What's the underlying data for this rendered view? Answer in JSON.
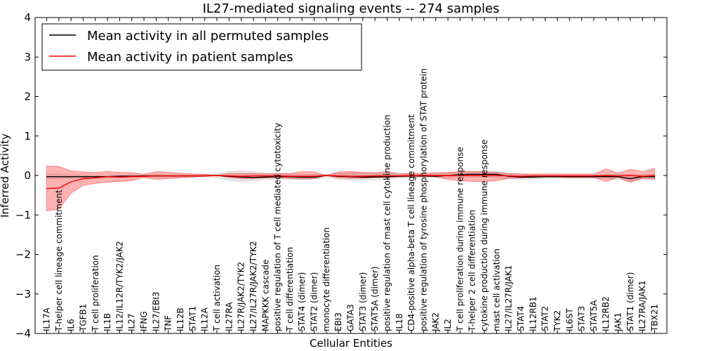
{
  "chart_data": {
    "type": "line",
    "title": "IL27-mediated signaling events -- 274 samples",
    "xlabel": "Cellular Entities",
    "ylabel": "Inferred Activity",
    "ylim": [
      -4,
      4
    ],
    "yticks": [
      "−4",
      "−3",
      "−2",
      "−1",
      "0",
      "1",
      "2",
      "3",
      "4"
    ],
    "ytick_values": [
      -4,
      -3,
      -2,
      -1,
      0,
      1,
      2,
      3,
      4
    ],
    "legend_position": "top-left",
    "categories": [
      "IL17A",
      "T-helper cell lineage commitment",
      "IL6",
      "TGFB1",
      "T cell proliferation",
      "IL1B",
      "IL12/IL12R/TYK2/JAK2",
      "IL27",
      "IFNG",
      "IL27/EBI3",
      "TNF",
      "IL12B",
      "STAT1",
      "IL12A",
      "T cell activation",
      "IL27RA",
      "IL27R/JAK2/TYK2",
      "IL27/IL27R/JAK2/TYK2",
      "MAPKKK cascade",
      "positive regulation of T cell mediated cytotoxicity",
      "T cell differentiation",
      "STAT4 (dimer)",
      "STAT2 (dimer)",
      "monocyte differentiation",
      "EBI3",
      "GATA3",
      "STAT3 (dimer)",
      "STAT5A (dimer)",
      "positive regulation of mast cell cytokine production",
      "IL18",
      "CD4-positive alpha-beta T cell lineage commitment",
      "positive regulation of tyrosine phosphorylation of STAT protein",
      "JAK2",
      "IL2",
      "T cell proliferation during immune response",
      "T-helper 2 cell differentiation",
      "cytokine production during immune response",
      "mast cell activation",
      "IL27/IL27R/JAK1",
      "STAT4",
      "IL12RB1",
      "STAT2",
      "TYK2",
      "IL6ST",
      "STAT3",
      "STAT5A",
      "IL12RB2",
      "JAK1",
      "STAT1 (dimer)",
      "IL27RA/JAK1",
      "TBX21"
    ],
    "series": [
      {
        "name": "Mean activity in all permuted samples",
        "color": "#000000",
        "values": [
          -0.03,
          -0.03,
          -0.03,
          -0.03,
          -0.03,
          -0.03,
          -0.02,
          -0.02,
          -0.01,
          -0.01,
          -0.01,
          -0.01,
          -0.01,
          -0.01,
          0.0,
          -0.02,
          -0.04,
          -0.05,
          -0.04,
          -0.03,
          -0.03,
          -0.04,
          -0.04,
          0.0,
          -0.02,
          -0.03,
          -0.04,
          -0.04,
          -0.03,
          -0.02,
          -0.01,
          -0.01,
          -0.02,
          0.0,
          0.02,
          0.03,
          0.03,
          0.03,
          -0.02,
          -0.04,
          -0.04,
          -0.03,
          -0.03,
          -0.03,
          -0.03,
          -0.03,
          -0.03,
          -0.03,
          -0.08,
          -0.03,
          -0.03
        ],
        "lower": [
          -0.08,
          -0.08,
          -0.07,
          -0.06,
          -0.06,
          -0.05,
          -0.05,
          -0.04,
          -0.04,
          -0.04,
          -0.04,
          -0.04,
          -0.04,
          -0.03,
          -0.05,
          -0.12,
          -0.15,
          -0.14,
          -0.1,
          -0.09,
          -0.09,
          -0.1,
          -0.09,
          -0.05,
          -0.09,
          -0.12,
          -0.12,
          -0.11,
          -0.08,
          -0.06,
          -0.05,
          -0.05,
          -0.06,
          -0.05,
          -0.05,
          -0.04,
          -0.04,
          -0.05,
          -0.09,
          -0.1,
          -0.09,
          -0.08,
          -0.07,
          -0.07,
          -0.07,
          -0.07,
          -0.08,
          -0.1,
          -0.15,
          -0.08,
          -0.08
        ],
        "upper": [
          0.03,
          0.03,
          0.02,
          0.01,
          0.0,
          0.0,
          0.01,
          0.01,
          0.02,
          0.02,
          0.02,
          0.02,
          0.02,
          0.02,
          0.05,
          0.1,
          0.12,
          0.1,
          0.06,
          0.05,
          0.04,
          0.03,
          0.03,
          0.03,
          0.06,
          0.07,
          0.06,
          0.05,
          0.05,
          0.03,
          0.04,
          0.04,
          0.04,
          0.06,
          0.08,
          0.1,
          0.1,
          0.1,
          0.05,
          0.03,
          0.02,
          0.02,
          0.02,
          0.02,
          0.02,
          0.02,
          0.02,
          0.03,
          0.02,
          0.03,
          0.03
        ]
      },
      {
        "name": "Mean activity in patient samples",
        "color": "#ff0000",
        "values": [
          -0.33,
          -0.32,
          -0.16,
          -0.08,
          -0.06,
          -0.03,
          -0.04,
          -0.03,
          -0.02,
          -0.01,
          -0.01,
          -0.01,
          -0.01,
          -0.01,
          0.0,
          -0.01,
          -0.02,
          -0.01,
          -0.01,
          -0.01,
          -0.02,
          -0.02,
          -0.02,
          0.0,
          -0.01,
          -0.02,
          -0.02,
          -0.01,
          -0.01,
          -0.01,
          0.0,
          0.0,
          0.0,
          0.0,
          0.0,
          0.0,
          0.0,
          0.0,
          -0.01,
          -0.02,
          -0.01,
          -0.01,
          -0.01,
          -0.01,
          -0.01,
          -0.01,
          0.0,
          -0.01,
          0.0,
          -0.02,
          0.0
        ],
        "lower": [
          -0.9,
          -0.85,
          -0.45,
          -0.25,
          -0.2,
          -0.17,
          -0.15,
          -0.13,
          -0.05,
          -0.1,
          -0.08,
          -0.06,
          -0.04,
          -0.02,
          0.0,
          -0.05,
          -0.08,
          -0.08,
          -0.06,
          -0.06,
          -0.07,
          -0.09,
          -0.08,
          0.0,
          -0.06,
          -0.07,
          -0.07,
          -0.05,
          -0.05,
          -0.03,
          -0.03,
          -0.03,
          -0.03,
          -0.1,
          -0.13,
          -0.15,
          -0.15,
          -0.13,
          -0.07,
          -0.06,
          -0.05,
          -0.04,
          -0.04,
          -0.05,
          -0.05,
          -0.05,
          -0.15,
          -0.05,
          -0.17,
          -0.08,
          -0.1
        ],
        "upper": [
          0.24,
          0.23,
          0.12,
          0.09,
          0.08,
          0.1,
          0.08,
          0.07,
          0.03,
          0.1,
          0.08,
          0.06,
          0.04,
          0.03,
          0.0,
          0.05,
          0.05,
          0.05,
          0.04,
          0.05,
          0.05,
          0.1,
          0.09,
          0.0,
          0.09,
          0.1,
          0.08,
          0.07,
          0.1,
          0.04,
          0.06,
          0.05,
          0.07,
          0.08,
          0.1,
          0.1,
          0.1,
          0.08,
          0.05,
          0.04,
          0.04,
          0.04,
          0.04,
          0.04,
          0.04,
          0.04,
          0.17,
          0.06,
          0.16,
          0.1,
          0.18
        ]
      }
    ]
  }
}
